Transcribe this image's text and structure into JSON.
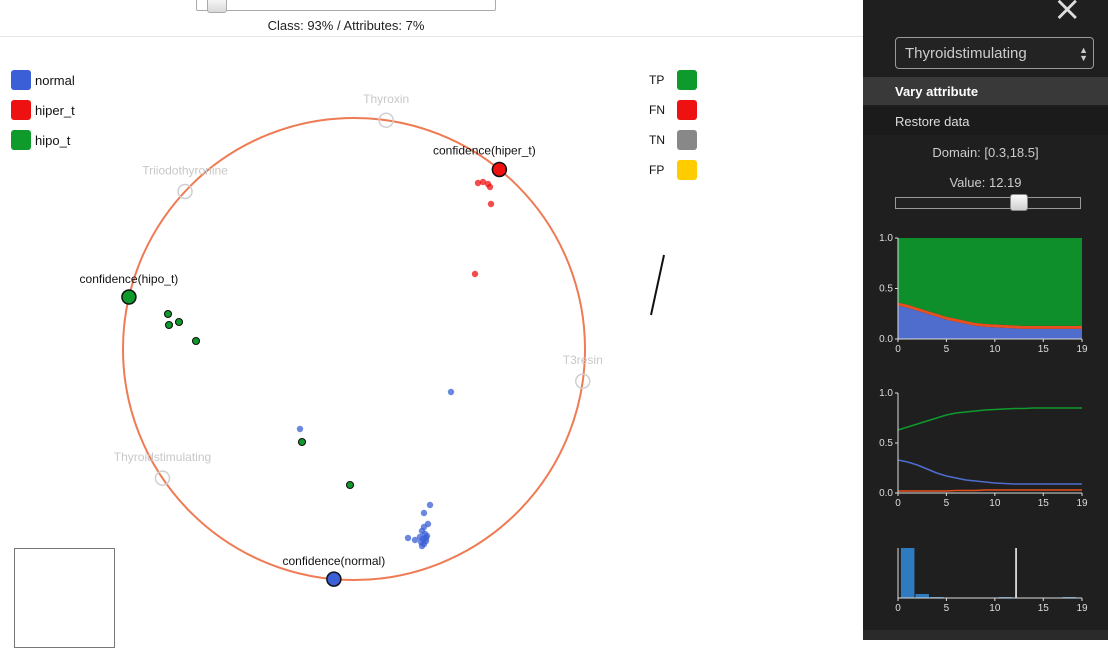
{
  "topbar": {
    "weight_label": "Class: 93% / Attributes: 7%",
    "class_weight_percent": 93
  },
  "class_legend": [
    {
      "label": "normal",
      "color": "#3a5fd6"
    },
    {
      "label": "hiper_t",
      "color": "#ee1111"
    },
    {
      "label": "hipo_t",
      "color": "#0f9a2c"
    }
  ],
  "outcome_legend": [
    {
      "label": "TP",
      "color": "#0f9a2c"
    },
    {
      "label": "FN",
      "color": "#ee1111"
    },
    {
      "label": "TN",
      "color": "#888888"
    },
    {
      "label": "FP",
      "color": "#ffcc00"
    }
  ],
  "radviz": {
    "circle_color": "#ef7b54",
    "attribute_anchors": [
      "Thyroxin",
      "Triiodothyronine",
      "T3resin",
      "Thyroidstimulating"
    ],
    "class_anchors": [
      {
        "label": "confidence(hiper_t)",
        "class": "hiper_t"
      },
      {
        "label": "confidence(hipo_t)",
        "class": "hipo_t"
      },
      {
        "label": "confidence(normal)",
        "class": "normal"
      }
    ]
  },
  "panel": {
    "close_icon": "×",
    "attribute_select": {
      "selected": "Thyroidstimulating"
    },
    "vary_button": "Vary attribute",
    "restore_button": "Restore data",
    "domain_text": "Domain: [0.3,18.5]",
    "value_text": "Value: 12.19",
    "value": 12.19,
    "domain": [
      0.3,
      18.5
    ]
  },
  "chart_data": [
    {
      "type": "area",
      "x": [
        0,
        1,
        2,
        3,
        4,
        5,
        6,
        7,
        8,
        9,
        10,
        11,
        12,
        13,
        14,
        15,
        16,
        17,
        18,
        19
      ],
      "xticks": [
        0,
        5,
        10,
        15,
        19
      ],
      "yticks": [
        "0.0",
        "0.5",
        "1.0"
      ],
      "ylim": [
        0,
        1
      ],
      "series": [
        {
          "color": "#4e6dcc",
          "values": [
            0.33,
            0.31,
            0.28,
            0.25,
            0.22,
            0.19,
            0.17,
            0.15,
            0.13,
            0.12,
            0.115,
            0.11,
            0.105,
            0.1,
            0.1,
            0.1,
            0.1,
            0.1,
            0.1,
            0.1
          ]
        },
        {
          "color": "#e8501f",
          "values": [
            0.03,
            0.03,
            0.03,
            0.03,
            0.03,
            0.03,
            0.03,
            0.03,
            0.03,
            0.03,
            0.03,
            0.03,
            0.03,
            0.03,
            0.03,
            0.03,
            0.03,
            0.03,
            0.03,
            0.03
          ]
        },
        {
          "color": "#0f8f2c",
          "values": [
            0.64,
            0.66,
            0.69,
            0.72,
            0.75,
            0.78,
            0.8,
            0.82,
            0.84,
            0.85,
            0.855,
            0.86,
            0.865,
            0.87,
            0.87,
            0.87,
            0.87,
            0.87,
            0.87,
            0.87
          ]
        }
      ]
    },
    {
      "type": "line",
      "x": [
        0,
        1,
        2,
        3,
        4,
        5,
        6,
        7,
        8,
        9,
        10,
        11,
        12,
        13,
        14,
        15,
        16,
        17,
        18,
        19
      ],
      "xticks": [
        0,
        5,
        10,
        15,
        19
      ],
      "yticks": [
        "0.0",
        "0.5",
        "1.0"
      ],
      "ylim": [
        0,
        1
      ],
      "series": [
        {
          "color": "#0f9a2c",
          "values": [
            0.63,
            0.66,
            0.69,
            0.72,
            0.75,
            0.78,
            0.8,
            0.81,
            0.82,
            0.83,
            0.835,
            0.84,
            0.845,
            0.845,
            0.85,
            0.85,
            0.85,
            0.85,
            0.85,
            0.85
          ]
        },
        {
          "color": "#4e6dcc",
          "values": [
            0.33,
            0.31,
            0.28,
            0.24,
            0.2,
            0.17,
            0.15,
            0.13,
            0.12,
            0.11,
            0.1,
            0.095,
            0.09,
            0.09,
            0.09,
            0.09,
            0.09,
            0.09,
            0.09,
            0.09
          ]
        },
        {
          "color": "#e8501f",
          "values": [
            0.02,
            0.02,
            0.02,
            0.02,
            0.02,
            0.02,
            0.025,
            0.025,
            0.025,
            0.03,
            0.03,
            0.03,
            0.03,
            0.03,
            0.03,
            0.03,
            0.03,
            0.03,
            0.03,
            0.03
          ]
        }
      ]
    },
    {
      "type": "bar",
      "xticks": [
        0,
        5,
        10,
        15,
        19
      ],
      "bins": [
        {
          "x0": 0.3,
          "x1": 1.8,
          "count": 100
        },
        {
          "x0": 1.8,
          "x1": 3.3,
          "count": 8
        },
        {
          "x0": 3.3,
          "x1": 4.8,
          "count": 1
        },
        {
          "x0": 10.4,
          "x1": 11.9,
          "count": 1
        },
        {
          "x0": 17.0,
          "x1": 18.5,
          "count": 1
        }
      ],
      "marker_value": 12.19,
      "color": "#2f7bc0"
    }
  ]
}
